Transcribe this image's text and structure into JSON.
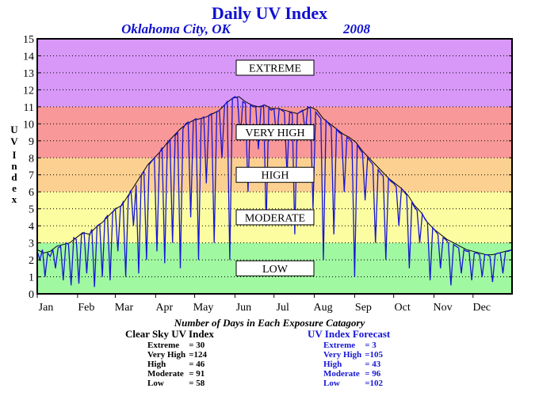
{
  "chart_data": {
    "type": "line",
    "title": "Daily UV Index",
    "subtitle_location": "Oklahoma City, OK",
    "subtitle_year": "2008",
    "ylabel": "UV Index",
    "xlabel": "",
    "ylim": [
      0,
      15
    ],
    "xlim": [
      1,
      366
    ],
    "y_ticks": [
      "0",
      "1",
      "2",
      "3",
      "4",
      "5",
      "6",
      "7",
      "8",
      "9",
      "10",
      "11",
      "12",
      "13",
      "14",
      "15"
    ],
    "x_tick_labels": [
      "Jan",
      "Feb",
      "Mar",
      "Apr",
      "May",
      "Jun",
      "Jul",
      "Aug",
      "Sep",
      "Oct",
      "Nov",
      "Dec"
    ],
    "x_tick_days": [
      1,
      32,
      61,
      92,
      122,
      153,
      183,
      214,
      245,
      275,
      306,
      336
    ],
    "grid": true,
    "bands": [
      {
        "label": "LOW",
        "from": 0,
        "to": 3,
        "color": "#a0f8a0"
      },
      {
        "label": "MODERATE",
        "from": 3,
        "to": 6,
        "color": "#fcfca0"
      },
      {
        "label": "HIGH",
        "from": 6,
        "to": 8,
        "color": "#fcd090"
      },
      {
        "label": "VERY HIGH",
        "from": 8,
        "to": 11,
        "color": "#f89898"
      },
      {
        "label": "EXTREME",
        "from": 11,
        "to": 15,
        "color": "#d898f8"
      }
    ],
    "series": [
      {
        "color": "#000000",
        "points": [
          [
            1,
            2.6
          ],
          [
            6,
            2.4
          ],
          [
            11,
            2.5
          ],
          [
            16,
            2.8
          ],
          [
            21,
            2.9
          ],
          [
            26,
            3.0
          ],
          [
            31,
            3.3
          ],
          [
            36,
            3.6
          ],
          [
            41,
            3.5
          ],
          [
            46,
            3.9
          ],
          [
            51,
            4.2
          ],
          [
            56,
            4.6
          ],
          [
            61,
            5.0
          ],
          [
            66,
            5.2
          ],
          [
            71,
            5.8
          ],
          [
            76,
            6.4
          ],
          [
            81,
            7.0
          ],
          [
            86,
            7.6
          ],
          [
            91,
            8.0
          ],
          [
            96,
            8.4
          ],
          [
            101,
            8.9
          ],
          [
            106,
            9.3
          ],
          [
            111,
            9.7
          ],
          [
            116,
            10.0
          ],
          [
            121,
            10.2
          ],
          [
            126,
            10.3
          ],
          [
            131,
            10.4
          ],
          [
            136,
            10.6
          ],
          [
            141,
            10.8
          ],
          [
            146,
            11.2
          ],
          [
            151,
            11.5
          ],
          [
            156,
            11.6
          ],
          [
            161,
            11.3
          ],
          [
            166,
            11.1
          ],
          [
            171,
            11.0
          ],
          [
            176,
            11.1
          ],
          [
            181,
            10.9
          ],
          [
            186,
            10.9
          ],
          [
            191,
            10.8
          ],
          [
            196,
            10.7
          ],
          [
            201,
            10.6
          ],
          [
            206,
            10.8
          ],
          [
            211,
            11.0
          ],
          [
            216,
            10.8
          ],
          [
            221,
            10.3
          ],
          [
            226,
            10.0
          ],
          [
            231,
            9.7
          ],
          [
            236,
            9.4
          ],
          [
            241,
            9.2
          ],
          [
            246,
            8.9
          ],
          [
            251,
            8.4
          ],
          [
            256,
            8.0
          ],
          [
            261,
            7.6
          ],
          [
            266,
            7.2
          ],
          [
            271,
            6.8
          ],
          [
            276,
            6.5
          ],
          [
            281,
            6.2
          ],
          [
            286,
            5.8
          ],
          [
            291,
            5.2
          ],
          [
            296,
            4.8
          ],
          [
            301,
            4.2
          ],
          [
            306,
            3.8
          ],
          [
            311,
            3.5
          ],
          [
            316,
            3.2
          ],
          [
            321,
            3.0
          ],
          [
            326,
            2.8
          ],
          [
            331,
            2.6
          ],
          [
            336,
            2.5
          ],
          [
            341,
            2.4
          ],
          [
            346,
            2.3
          ],
          [
            351,
            2.3
          ],
          [
            356,
            2.4
          ],
          [
            361,
            2.5
          ],
          [
            366,
            2.6
          ]
        ]
      },
      {
        "color": "#1515d6",
        "points": [
          [
            1,
            2.5
          ],
          [
            3,
            2.0
          ],
          [
            5,
            2.6
          ],
          [
            7,
            1.0
          ],
          [
            9,
            2.4
          ],
          [
            11,
            2.2
          ],
          [
            13,
            2.6
          ],
          [
            15,
            1.5
          ],
          [
            17,
            2.7
          ],
          [
            19,
            2.8
          ],
          [
            21,
            0.8
          ],
          [
            23,
            3.0
          ],
          [
            25,
            2.9
          ],
          [
            27,
            0.5
          ],
          [
            29,
            3.3
          ],
          [
            31,
            3.2
          ],
          [
            33,
            0.6
          ],
          [
            35,
            3.5
          ],
          [
            37,
            3.6
          ],
          [
            39,
            1.2
          ],
          [
            41,
            3.4
          ],
          [
            43,
            3.8
          ],
          [
            45,
            0.4
          ],
          [
            47,
            4.0
          ],
          [
            49,
            4.1
          ],
          [
            51,
            1.0
          ],
          [
            53,
            4.4
          ],
          [
            55,
            4.6
          ],
          [
            57,
            0.8
          ],
          [
            59,
            4.8
          ],
          [
            61,
            5.0
          ],
          [
            63,
            2.5
          ],
          [
            65,
            5.1
          ],
          [
            67,
            5.4
          ],
          [
            69,
            1.0
          ],
          [
            71,
            5.7
          ],
          [
            73,
            6.1
          ],
          [
            75,
            4.0
          ],
          [
            77,
            6.4
          ],
          [
            79,
            1.2
          ],
          [
            81,
            7.0
          ],
          [
            83,
            7.2
          ],
          [
            85,
            2.0
          ],
          [
            87,
            7.6
          ],
          [
            89,
            7.8
          ],
          [
            91,
            8.0
          ],
          [
            93,
            2.5
          ],
          [
            95,
            8.3
          ],
          [
            97,
            8.6
          ],
          [
            99,
            1.8
          ],
          [
            101,
            8.8
          ],
          [
            103,
            9.1
          ],
          [
            105,
            3.0
          ],
          [
            107,
            9.3
          ],
          [
            109,
            9.5
          ],
          [
            111,
            1.5
          ],
          [
            113,
            9.7
          ],
          [
            115,
            10.0
          ],
          [
            117,
            10.1
          ],
          [
            119,
            4.5
          ],
          [
            121,
            10.2
          ],
          [
            123,
            10.3
          ],
          [
            125,
            2.0
          ],
          [
            127,
            10.3
          ],
          [
            129,
            10.4
          ],
          [
            131,
            6.5
          ],
          [
            133,
            10.5
          ],
          [
            135,
            10.6
          ],
          [
            137,
            3.0
          ],
          [
            139,
            10.7
          ],
          [
            141,
            10.8
          ],
          [
            143,
            8.0
          ],
          [
            145,
            11.1
          ],
          [
            147,
            11.3
          ],
          [
            149,
            2.0
          ],
          [
            151,
            11.5
          ],
          [
            153,
            11.6
          ],
          [
            155,
            11.5
          ],
          [
            157,
            9.0
          ],
          [
            159,
            11.3
          ],
          [
            161,
            11.2
          ],
          [
            163,
            6.0
          ],
          [
            165,
            11.1
          ],
          [
            167,
            11.0
          ],
          [
            169,
            11.0
          ],
          [
            171,
            8.5
          ],
          [
            173,
            11.0
          ],
          [
            175,
            11.1
          ],
          [
            177,
            4.0
          ],
          [
            179,
            10.9
          ],
          [
            181,
            10.8
          ],
          [
            183,
            10.9
          ],
          [
            185,
            9.0
          ],
          [
            187,
            10.9
          ],
          [
            189,
            10.8
          ],
          [
            191,
            10.7
          ],
          [
            193,
            7.0
          ],
          [
            195,
            10.7
          ],
          [
            197,
            10.6
          ],
          [
            199,
            3.5
          ],
          [
            201,
            10.6
          ],
          [
            203,
            10.7
          ],
          [
            205,
            10.8
          ],
          [
            207,
            9.5
          ],
          [
            209,
            11.0
          ],
          [
            211,
            10.9
          ],
          [
            213,
            5.0
          ],
          [
            215,
            10.7
          ],
          [
            217,
            10.5
          ],
          [
            219,
            10.3
          ],
          [
            221,
            2.0
          ],
          [
            223,
            10.2
          ],
          [
            225,
            10.0
          ],
          [
            227,
            9.8
          ],
          [
            229,
            3.5
          ],
          [
            231,
            9.7
          ],
          [
            233,
            9.5
          ],
          [
            235,
            9.4
          ],
          [
            237,
            6.0
          ],
          [
            239,
            9.2
          ],
          [
            241,
            9.1
          ],
          [
            243,
            8.9
          ],
          [
            245,
            1.0
          ],
          [
            247,
            8.8
          ],
          [
            249,
            8.5
          ],
          [
            251,
            8.3
          ],
          [
            253,
            5.5
          ],
          [
            255,
            8.0
          ],
          [
            257,
            7.8
          ],
          [
            259,
            7.6
          ],
          [
            261,
            3.0
          ],
          [
            263,
            7.3
          ],
          [
            265,
            7.1
          ],
          [
            267,
            6.9
          ],
          [
            269,
            2.0
          ],
          [
            271,
            6.8
          ],
          [
            273,
            6.6
          ],
          [
            275,
            6.5
          ],
          [
            277,
            6.3
          ],
          [
            279,
            4.0
          ],
          [
            281,
            6.2
          ],
          [
            283,
            6.0
          ],
          [
            285,
            5.8
          ],
          [
            287,
            1.5
          ],
          [
            289,
            5.4
          ],
          [
            291,
            5.1
          ],
          [
            293,
            4.9
          ],
          [
            295,
            3.0
          ],
          [
            297,
            4.7
          ],
          [
            299,
            4.4
          ],
          [
            301,
            4.2
          ],
          [
            303,
            0.8
          ],
          [
            305,
            3.9
          ],
          [
            307,
            3.7
          ],
          [
            309,
            3.5
          ],
          [
            311,
            1.5
          ],
          [
            313,
            3.3
          ],
          [
            315,
            3.2
          ],
          [
            317,
            3.0
          ],
          [
            319,
            0.5
          ],
          [
            321,
            2.9
          ],
          [
            323,
            2.8
          ],
          [
            325,
            2.7
          ],
          [
            327,
            1.2
          ],
          [
            329,
            2.6
          ],
          [
            331,
            2.5
          ],
          [
            333,
            2.5
          ],
          [
            335,
            0.8
          ],
          [
            337,
            2.4
          ],
          [
            339,
            2.4
          ],
          [
            341,
            2.3
          ],
          [
            343,
            1.0
          ],
          [
            345,
            2.3
          ],
          [
            347,
            2.3
          ],
          [
            349,
            2.2
          ],
          [
            351,
            0.7
          ],
          [
            353,
            2.3
          ],
          [
            355,
            2.4
          ],
          [
            357,
            2.4
          ],
          [
            359,
            1.2
          ],
          [
            361,
            2.5
          ],
          [
            363,
            2.5
          ],
          [
            366,
            2.6
          ]
        ]
      }
    ]
  },
  "caption": "Number of Days in Each Exposure Catagory",
  "clear_sky": {
    "heading": "Clear Sky UV Index",
    "rows": [
      {
        "label": "Extreme",
        "value": "= 30"
      },
      {
        "label": "Very High",
        "value": "=124"
      },
      {
        "label": "High",
        "value": "= 46"
      },
      {
        "label": "Moderate",
        "value": "= 91"
      },
      {
        "label": "Low",
        "value": "= 58"
      }
    ]
  },
  "forecast": {
    "heading": "UV Index Forecast",
    "rows": [
      {
        "label": "Extreme",
        "value": "= 3"
      },
      {
        "label": "Very High",
        "value": "=105"
      },
      {
        "label": "High",
        "value": "= 43"
      },
      {
        "label": "Moderate",
        "value": "= 96"
      },
      {
        "label": "Low",
        "value": "=102"
      }
    ]
  },
  "colors": {
    "title": "#1010d0",
    "forecast_text": "#1515d6"
  }
}
